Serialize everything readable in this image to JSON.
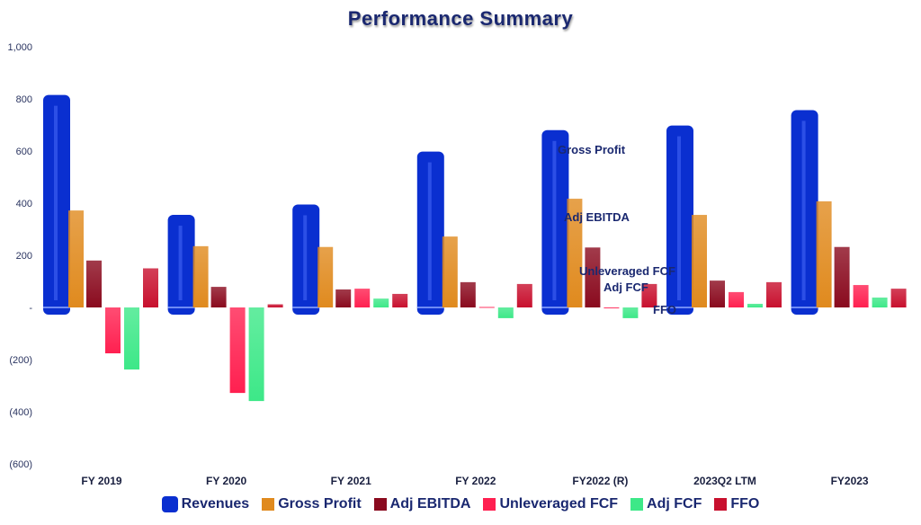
{
  "chart_data": {
    "type": "bar",
    "title": "Performance Summary",
    "xlabel": "",
    "ylabel": "",
    "ylim": [
      -600,
      1000
    ],
    "yticks": [
      {
        "v": 1000,
        "label": "1,000"
      },
      {
        "v": 800,
        "label": "800"
      },
      {
        "v": 600,
        "label": "600"
      },
      {
        "v": 400,
        "label": "400"
      },
      {
        "v": 200,
        "label": "200"
      },
      {
        "v": 0,
        "label": "-"
      },
      {
        "v": -200,
        "label": "(200)"
      },
      {
        "v": -400,
        "label": "(400)"
      },
      {
        "v": -600,
        "label": "(600)"
      }
    ],
    "categories": [
      "FY 2019",
      "FY 2020",
      "FY 2021",
      "FY 2022",
      "FY2022 (R)",
      "2023Q2 LTM",
      "FY2023"
    ],
    "series": [
      {
        "name": "Revenues",
        "color": "#0a2fd0",
        "values": [
          815,
          355,
          395,
          598,
          680,
          698,
          757
        ]
      },
      {
        "name": "Gross Profit",
        "color": "#e08a1e",
        "values": [
          372,
          235,
          232,
          272,
          417,
          355,
          407
        ]
      },
      {
        "name": "Adj EBITDA",
        "color": "#8a0a1e",
        "values": [
          180,
          79,
          69,
          97,
          230,
          103,
          232
        ]
      },
      {
        "name": "Unleveraged FCF",
        "color": "#ff2050",
        "values": [
          -176,
          -328,
          72,
          2,
          0,
          59,
          86
        ]
      },
      {
        "name": "Adj FCF",
        "color": "#3de888",
        "values": [
          -238,
          -359,
          34,
          -41,
          -41,
          14,
          38
        ]
      },
      {
        "name": "FFO",
        "color": "#c8102e",
        "values": [
          150,
          12,
          52,
          90,
          90,
          97,
          72
        ]
      }
    ],
    "annotations": [
      "Gross Profit",
      "Adj EBITDA",
      "Unleveraged FCF",
      "Adj FCF",
      "FFO"
    ],
    "legend": "bottom"
  }
}
